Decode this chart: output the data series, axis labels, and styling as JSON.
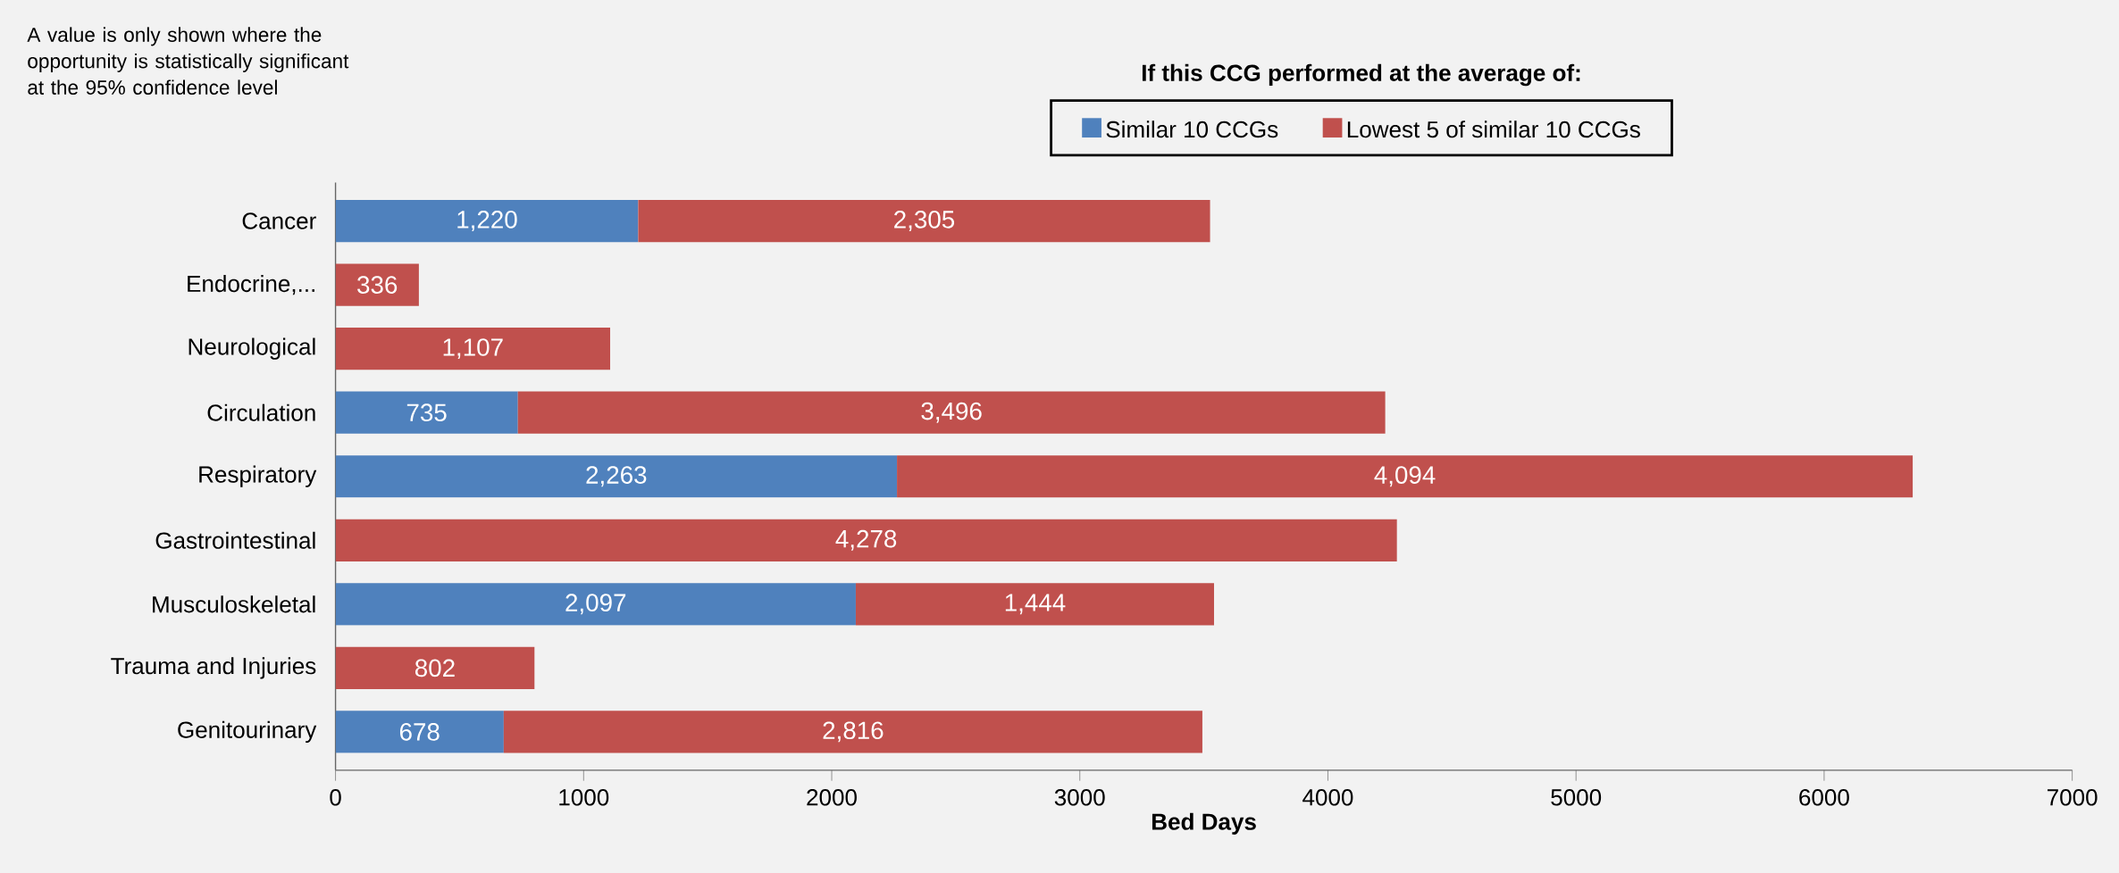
{
  "chart_data": {
    "type": "bar",
    "orientation": "horizontal",
    "stacked": true,
    "categories": [
      "Cancer",
      "Endocrine,...",
      "Neurological",
      "Circulation",
      "Respiratory",
      "Gastrointestinal",
      "Musculoskeletal",
      "Trauma and Injuries",
      "Genitourinary"
    ],
    "series": [
      {
        "name": "Similar 10 CCGs",
        "color": "#4f81bd",
        "values": [
          1220,
          null,
          null,
          735,
          2263,
          null,
          2097,
          null,
          678
        ],
        "value_labels": [
          "1,220",
          null,
          null,
          "735",
          "2,263",
          null,
          "2,097",
          null,
          "678"
        ]
      },
      {
        "name": "Lowest 5 of similar 10 CCGs",
        "color": "#c0504d",
        "values": [
          2305,
          336,
          1107,
          3496,
          4094,
          4278,
          1444,
          802,
          2816
        ],
        "value_labels": [
          "2,305",
          "336",
          "1,107",
          "3,496",
          "4,094",
          "4,278",
          "1,444",
          "802",
          "2,816"
        ]
      }
    ],
    "xlim": [
      0,
      7000
    ],
    "xticks": [
      0,
      1000,
      2000,
      3000,
      4000,
      5000,
      6000,
      7000
    ],
    "xlabel": "Bed Days",
    "legend_title": "If this CCG performed at the average of:",
    "legend": "top",
    "annotations": [
      "A value is only shown where the opportunity is statistically significant at the 95% confidence level"
    ]
  }
}
